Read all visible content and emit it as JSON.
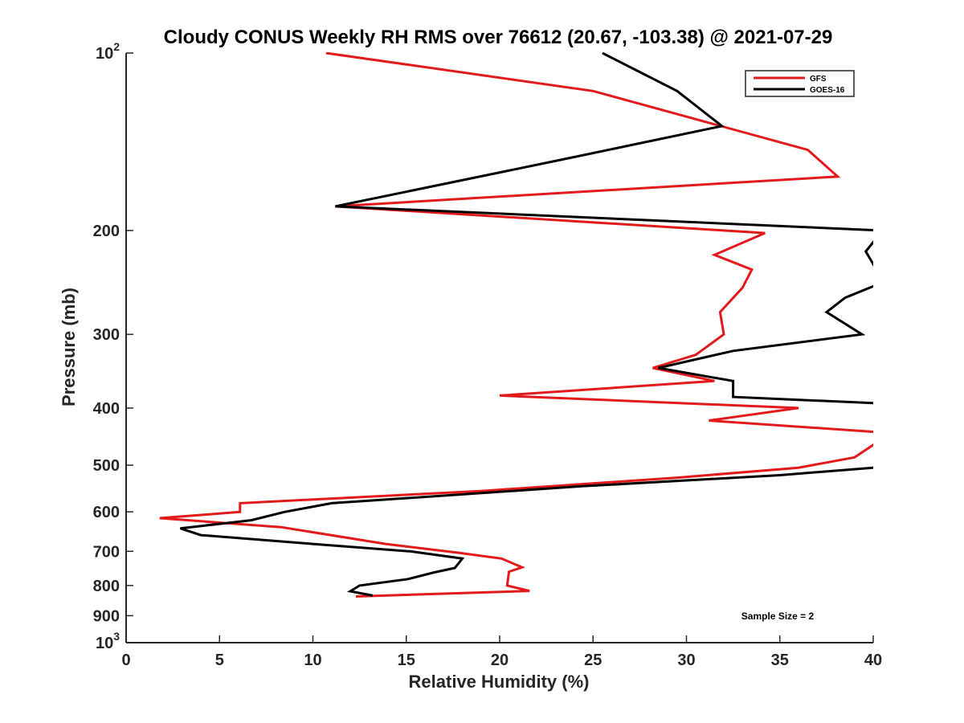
{
  "chart_data": {
    "type": "line",
    "title": "Cloudy CONUS Weekly RH RMS over 76612 (20.67, -103.38) @ 2021-07-29",
    "xlabel": "Relative Humidity (%)",
    "ylabel": "Pressure (mb)",
    "xlim": [
      0,
      40
    ],
    "ylim": [
      100,
      1000
    ],
    "yscale": "log",
    "y_reversed": true,
    "xticks": [
      0,
      5,
      10,
      15,
      20,
      25,
      30,
      35,
      40
    ],
    "yticks": [
      {
        "value": 100,
        "base": "10",
        "exp": "2",
        "label": ""
      },
      {
        "value": 200,
        "label": "200"
      },
      {
        "value": 300,
        "label": "300"
      },
      {
        "value": 400,
        "label": "400"
      },
      {
        "value": 500,
        "label": "500"
      },
      {
        "value": 600,
        "label": "600"
      },
      {
        "value": 700,
        "label": "700"
      },
      {
        "value": 800,
        "label": "800"
      },
      {
        "value": 900,
        "label": "900"
      },
      {
        "value": 1000,
        "base": "10",
        "exp": "3",
        "label": ""
      }
    ],
    "legend_position": "top-right",
    "annotation": "Sample Size = 2",
    "series": [
      {
        "name": "GFS",
        "color": "#e31a1c",
        "points": [
          [
            10.7,
            100
          ],
          [
            25,
            116
          ],
          [
            36.5,
            146
          ],
          [
            38.1,
            162
          ],
          [
            11.2,
            182
          ],
          [
            34.2,
            202
          ],
          [
            31.5,
            220
          ],
          [
            33.5,
            233
          ],
          [
            33,
            250
          ],
          [
            31.8,
            275
          ],
          [
            32,
            300
          ],
          [
            30.5,
            325
          ],
          [
            28.2,
            342
          ],
          [
            31.5,
            360
          ],
          [
            20,
            381
          ],
          [
            36,
            400
          ],
          [
            31.2,
            420
          ],
          [
            40.5,
            440
          ],
          [
            40.5,
            450
          ],
          [
            40,
            462
          ],
          [
            39,
            485
          ],
          [
            36,
            505
          ],
          [
            29.5,
            525
          ],
          [
            19,
            553
          ],
          [
            6.1,
            580
          ],
          [
            6.1,
            600
          ],
          [
            1.8,
            615
          ],
          [
            8.3,
            637
          ],
          [
            13.9,
            680
          ],
          [
            17.8,
            704
          ],
          [
            20.1,
            720
          ],
          [
            21.2,
            745
          ],
          [
            20.5,
            758
          ],
          [
            20.4,
            800
          ],
          [
            21.6,
            817
          ],
          [
            12.3,
            835
          ]
        ]
      },
      {
        "name": "GOES-16",
        "color": "#000000",
        "points": [
          [
            25.5,
            100
          ],
          [
            29.5,
            116
          ],
          [
            31.9,
            133
          ],
          [
            23.6,
            151
          ],
          [
            11.2,
            182
          ],
          [
            40.5,
            200
          ],
          [
            39.6,
            217
          ],
          [
            40,
            228
          ],
          [
            40.5,
            245
          ],
          [
            38.5,
            260
          ],
          [
            37.5,
            275
          ],
          [
            39.4,
            300
          ],
          [
            32.5,
            320
          ],
          [
            28.5,
            342
          ],
          [
            32.5,
            360
          ],
          [
            32.5,
            383
          ],
          [
            40.5,
            393
          ],
          [
            40.5,
            493
          ],
          [
            40,
            505
          ],
          [
            35,
            520
          ],
          [
            24.4,
            543
          ],
          [
            11,
            580
          ],
          [
            8.5,
            600
          ],
          [
            6.7,
            620
          ],
          [
            2.9,
            640
          ],
          [
            4,
            657
          ],
          [
            10,
            680
          ],
          [
            15.2,
            700
          ],
          [
            18,
            720
          ],
          [
            17.6,
            747
          ],
          [
            16.5,
            760
          ],
          [
            15.1,
            780
          ],
          [
            12.5,
            800
          ],
          [
            12,
            818
          ],
          [
            13.2,
            832
          ]
        ]
      }
    ]
  }
}
